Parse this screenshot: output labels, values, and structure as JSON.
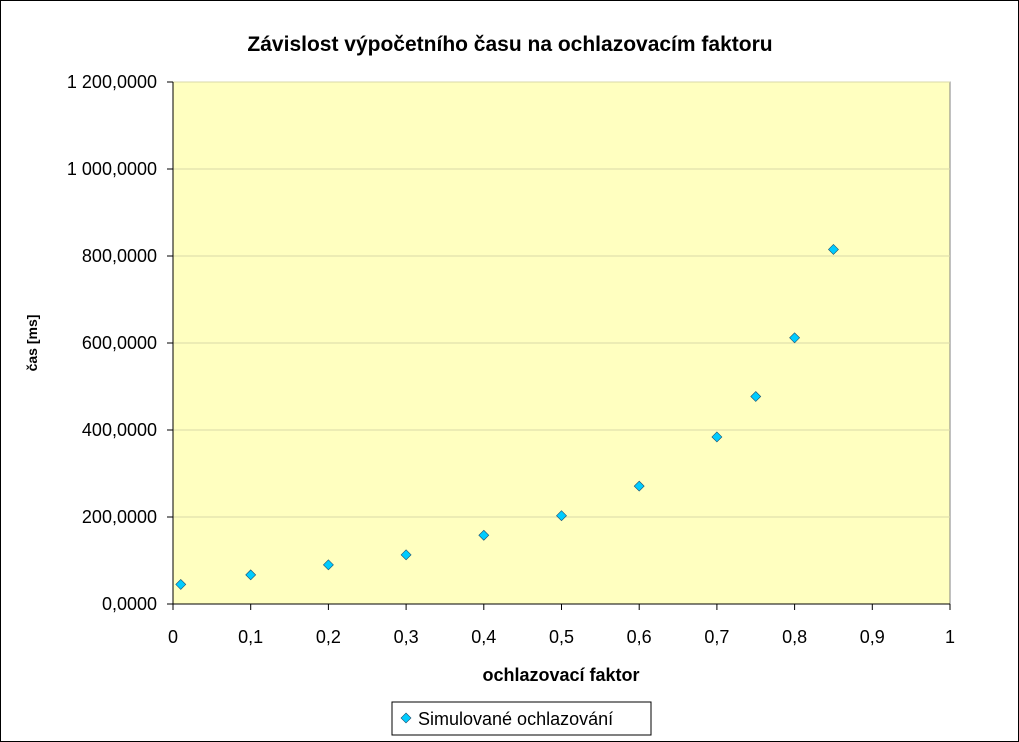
{
  "chart_data": {
    "type": "scatter",
    "title": "Závislost výpočetního času na ochlazovacím faktoru",
    "xlabel": "ochlazovací faktor",
    "ylabel": "čas [ms]",
    "xlim": [
      0,
      1
    ],
    "ylim": [
      0,
      1200
    ],
    "x_ticks": [
      0,
      0.1,
      0.2,
      0.3,
      0.4,
      0.5,
      0.6,
      0.7,
      0.8,
      0.9,
      1
    ],
    "x_tick_labels": [
      "0",
      "0,1",
      "0,2",
      "0,3",
      "0,4",
      "0,5",
      "0,6",
      "0,7",
      "0,8",
      "0,9",
      "1"
    ],
    "y_ticks": [
      0,
      200,
      400,
      600,
      800,
      1000,
      1200
    ],
    "y_tick_labels": [
      "0,0000",
      "200,0000",
      "400,0000",
      "600,0000",
      "800,0000",
      "1 000,0000",
      "1 200,0000"
    ],
    "grid": "horizontal",
    "legend_position": "bottom",
    "plot_background": "#FFFFC0",
    "series": [
      {
        "name": "Simulované ochlazování",
        "color": "#00CCFF",
        "marker": "diamond",
        "x": [
          0.01,
          0.1,
          0.2,
          0.3,
          0.4,
          0.5,
          0.6,
          0.7,
          0.75,
          0.8,
          0.85
        ],
        "y": [
          45,
          67,
          90,
          113,
          158,
          203,
          271,
          384,
          477,
          612,
          815
        ]
      }
    ]
  }
}
